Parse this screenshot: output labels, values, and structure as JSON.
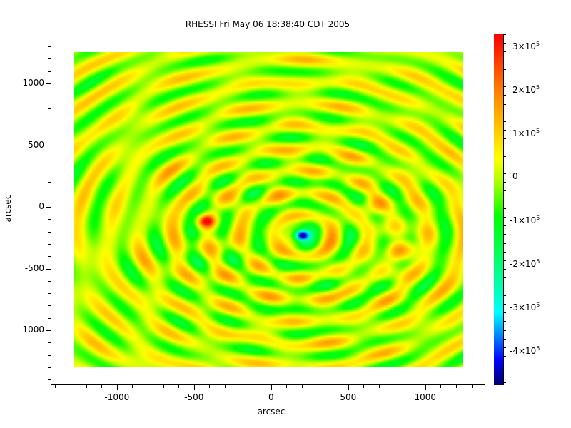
{
  "chart_data": {
    "type": "heatmap",
    "title": "RHESSI Fri May 06 18:38:40 CDT 2005",
    "xlabel": "arcsec",
    "ylabel": "arcsec",
    "xlim": [
      -1430,
      1390
    ],
    "ylim": [
      -1445,
      1405
    ],
    "image_extent": {
      "x": [
        -1280,
        1245
      ],
      "y": [
        -1300,
        1255
      ]
    },
    "x_ticks": [
      -1000,
      -500,
      0,
      500,
      1000
    ],
    "x_tick_labels": [
      "-1000",
      "-500",
      "0",
      "500",
      "1000"
    ],
    "y_ticks": [
      -1000,
      -500,
      0,
      500,
      1000
    ],
    "y_tick_labels": [
      "-1000",
      "-500",
      "0",
      "500",
      "1000"
    ],
    "colorbar": {
      "range": [
        -477000,
        330000
      ],
      "ticks": [
        300000,
        200000,
        100000,
        0,
        -100000,
        -200000,
        -300000,
        -400000
      ],
      "tick_labels": [
        {
          "m": "3",
          "e": "5"
        },
        {
          "m": "2",
          "e": "5"
        },
        {
          "m": "1",
          "e": "5"
        },
        {
          "m": "0",
          "e": ""
        },
        {
          "m": "-1",
          "e": "5"
        },
        {
          "m": "-2",
          "e": "5"
        },
        {
          "m": "-3",
          "e": "5"
        },
        {
          "m": "-4",
          "e": "5"
        }
      ],
      "colormap": "rainbow"
    },
    "features": [
      {
        "x": -420,
        "y": -115,
        "value": 310000,
        "ring_period": 240
      },
      {
        "x": 200,
        "y": -230,
        "value": -460000,
        "ring_period": 180
      },
      {
        "x": 860,
        "y": -360,
        "value": 150000,
        "ring_period": 210
      },
      {
        "x": 680,
        "y": 20,
        "value": 90000,
        "ring_period": 200
      }
    ]
  }
}
